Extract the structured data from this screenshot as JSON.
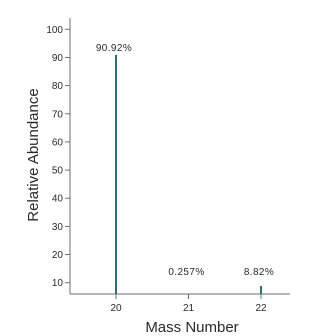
{
  "chart_data": {
    "type": "bar",
    "title": "",
    "xlabel": "Mass Number",
    "ylabel": "Relative Abundance",
    "categories": [
      "20",
      "21",
      "22"
    ],
    "values": [
      90.92,
      0.257,
      8.82
    ],
    "data_labels": [
      "90.92%",
      "0.257%",
      "8.82%"
    ],
    "yticks": [
      10,
      20,
      30,
      40,
      50,
      60,
      70,
      80,
      90,
      100
    ],
    "ylim": [
      6,
      104
    ],
    "grid": false,
    "legend": "none",
    "colors": {
      "stick": "#2d6f72",
      "axis": "#6e6e6e",
      "text": "#2a2a2a"
    }
  }
}
